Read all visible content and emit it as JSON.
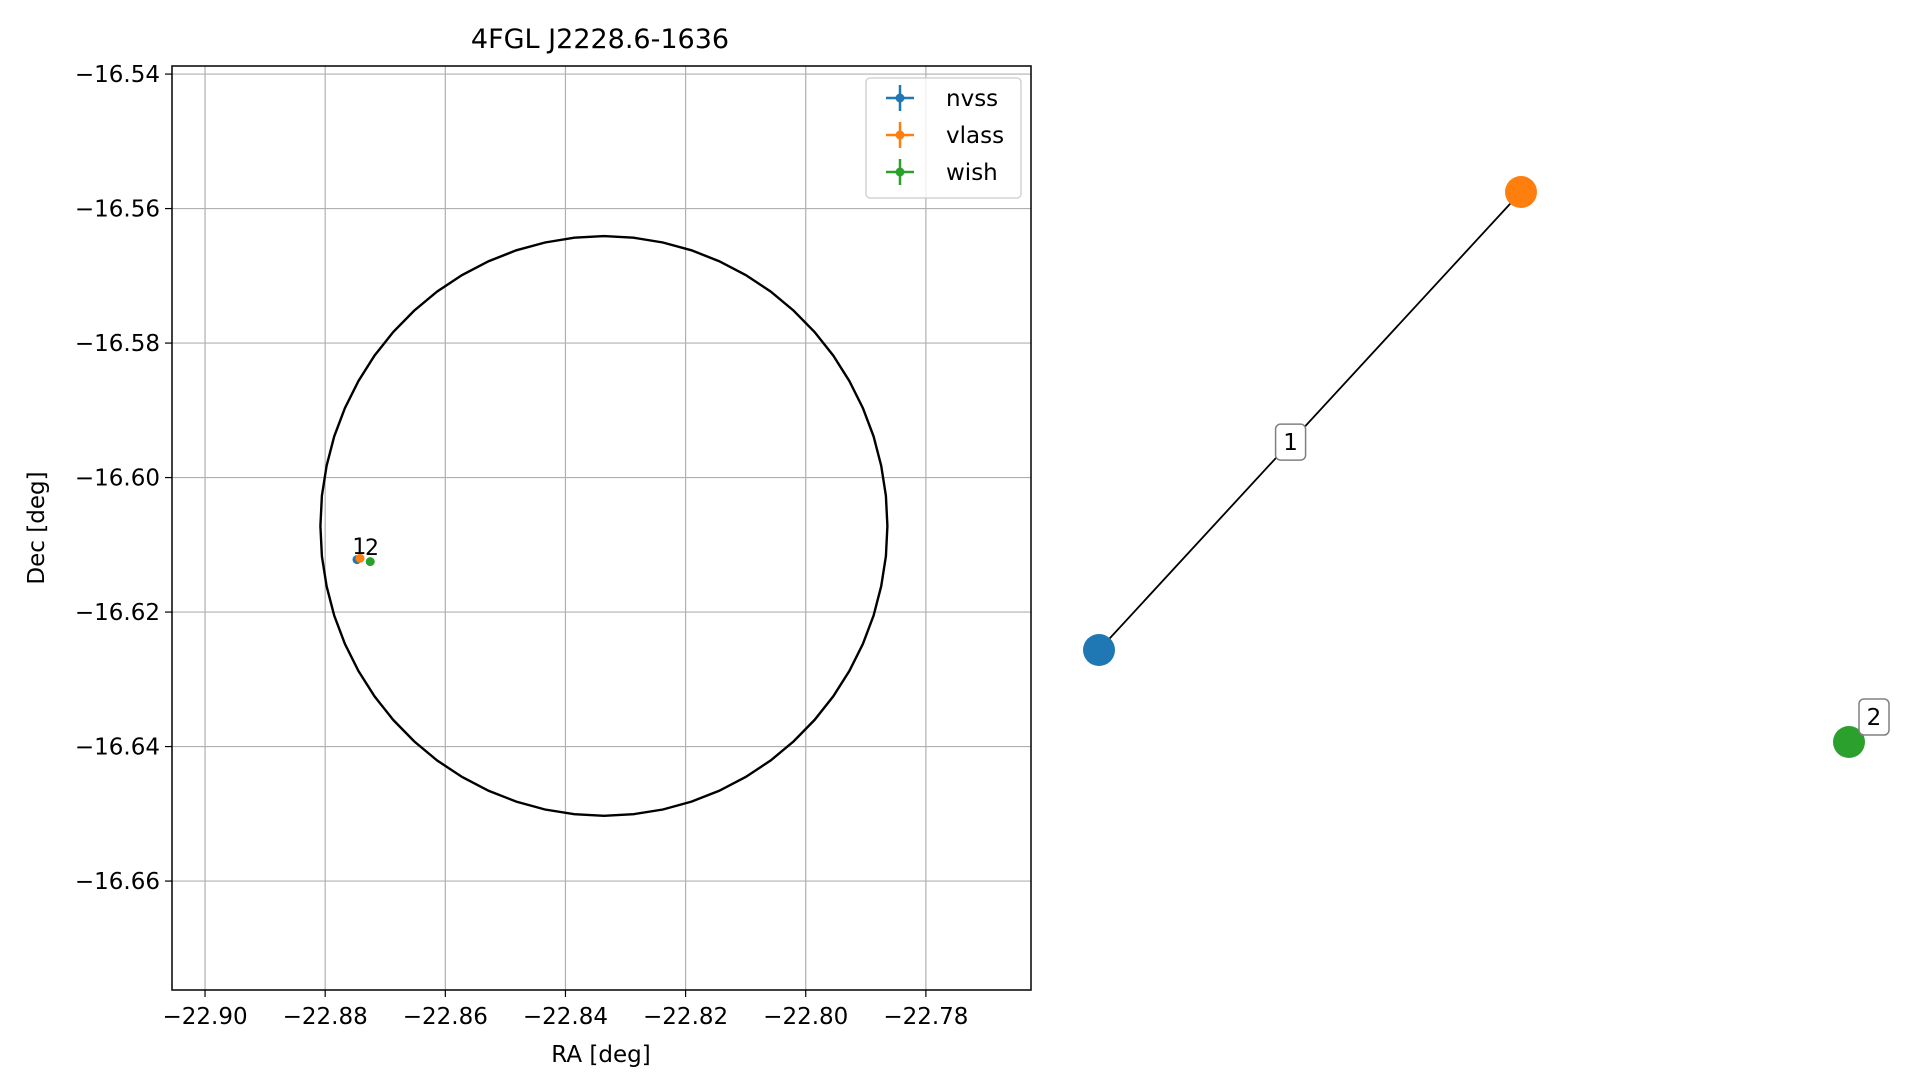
{
  "chart_data": [
    {
      "type": "scatter",
      "title": "4FGL J2228.6-1636",
      "xlabel": "RA [deg]",
      "ylabel": "Dec [deg]",
      "xlim": [
        -22.9055,
        -22.7625
      ],
      "ylim": [
        -16.6762,
        -16.5388
      ],
      "xticks": [
        -22.9,
        -22.88,
        -22.86,
        -22.84,
        -22.82,
        -22.8,
        -22.78
      ],
      "xtick_labels": [
        "−22.90",
        "−22.88",
        "−22.86",
        "−22.84",
        "−22.82",
        "−22.80",
        "−22.78"
      ],
      "yticks": [
        -16.54,
        -16.56,
        -16.58,
        -16.6,
        -16.62,
        -16.64,
        -16.66
      ],
      "ytick_labels": [
        "−16.54",
        "−16.56",
        "−16.58",
        "−16.60",
        "−16.62",
        "−16.64",
        "−16.66"
      ],
      "grid": true,
      "legend_position": "top-right",
      "series": [
        {
          "name": "nvss",
          "color": "#1f77b4",
          "x": [
            -22.8747
          ],
          "y": [
            -16.6122
          ]
        },
        {
          "name": "vlass",
          "color": "#ff7f0e",
          "x": [
            -22.8742
          ],
          "y": [
            -16.612
          ]
        },
        {
          "name": "wish",
          "color": "#2ca02c",
          "x": [
            -22.8725
          ],
          "y": [
            -16.6125
          ]
        }
      ],
      "annotations": [
        {
          "text": "1",
          "x": -22.8743,
          "y": -16.6103
        },
        {
          "text": "2",
          "x": -22.8722,
          "y": -16.6105
        }
      ],
      "ellipse": {
        "center": [
          -22.8336,
          -16.6072
        ],
        "ra_radius": 0.0472,
        "dec_radius": 0.0431,
        "color": "#000000"
      }
    },
    {
      "type": "network",
      "nodes": [
        {
          "id": "nvss",
          "color": "#1f77b4"
        },
        {
          "id": "vlass",
          "color": "#ff7f0e"
        },
        {
          "id": "wish",
          "color": "#2ca02c"
        }
      ],
      "edges": [
        {
          "from": "nvss",
          "to": "vlass",
          "label": "1"
        }
      ],
      "node_labels": [
        {
          "node": "wish",
          "label": "2"
        }
      ]
    }
  ]
}
